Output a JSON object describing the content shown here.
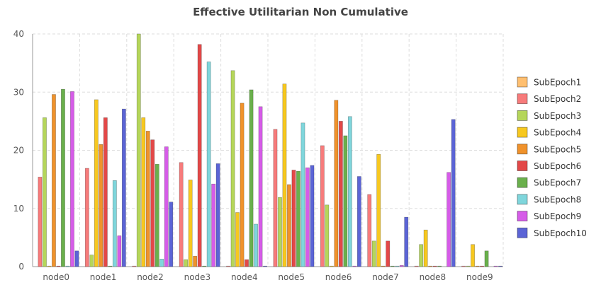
{
  "chart_data": {
    "type": "bar",
    "title": "Effective Utilitarian Non Cumulative",
    "xlabel": "",
    "ylabel": "",
    "ylim": [
      0,
      40
    ],
    "yticks": [
      0,
      10,
      20,
      30,
      40
    ],
    "grid": true,
    "legend_position": "right",
    "categories": [
      "node0",
      "node1",
      "node2",
      "node3",
      "node4",
      "node5",
      "node6",
      "node7",
      "node8",
      "node9"
    ],
    "series": [
      {
        "name": "SubEpoch1",
        "color": "#ffbf70",
        "values": [
          0,
          0,
          0,
          0,
          0,
          0,
          0,
          0,
          0,
          0
        ]
      },
      {
        "name": "SubEpoch2",
        "color": "#f77b7b",
        "values": [
          15.4,
          16.9,
          0.1,
          17.9,
          0.1,
          23.6,
          20.8,
          12.4,
          0.1,
          0.1
        ]
      },
      {
        "name": "SubEpoch3",
        "color": "#b5d65a",
        "values": [
          25.6,
          2,
          40,
          1.2,
          33.7,
          11.9,
          10.6,
          4.4,
          3.8,
          0.1
        ]
      },
      {
        "name": "SubEpoch4",
        "color": "#f7c81f",
        "values": [
          0.1,
          28.7,
          25.6,
          14.9,
          9.3,
          31.4,
          0.1,
          19.3,
          6.3,
          3.8
        ]
      },
      {
        "name": "SubEpoch5",
        "color": "#f0922b",
        "values": [
          29.6,
          21,
          23.3,
          1.8,
          28.1,
          14.1,
          28.6,
          0.1,
          0.1,
          0.1
        ]
      },
      {
        "name": "SubEpoch6",
        "color": "#e34848",
        "values": [
          0.1,
          25.6,
          21.8,
          38.2,
          1.2,
          16.6,
          25,
          4.4,
          0.1,
          0.1
        ]
      },
      {
        "name": "SubEpoch7",
        "color": "#6ab04c",
        "values": [
          30.5,
          0.1,
          17.6,
          0.1,
          30.4,
          16.4,
          22.5,
          0.1,
          0.1,
          2.7
        ]
      },
      {
        "name": "SubEpoch8",
        "color": "#7fd6dc",
        "values": [
          0.1,
          14.8,
          1.3,
          35.2,
          7.3,
          24.7,
          25.8,
          0.1,
          0,
          0
        ]
      },
      {
        "name": "SubEpoch9",
        "color": "#d65ce8",
        "values": [
          30.1,
          5.3,
          20.6,
          14.2,
          27.5,
          17,
          0.1,
          0.2,
          16.2,
          0.1
        ]
      },
      {
        "name": "SubEpoch10",
        "color": "#5b64d6",
        "values": [
          2.7,
          27.1,
          11.1,
          17.7,
          0.1,
          17.4,
          15.5,
          8.5,
          25.3,
          0.1
        ]
      }
    ]
  }
}
